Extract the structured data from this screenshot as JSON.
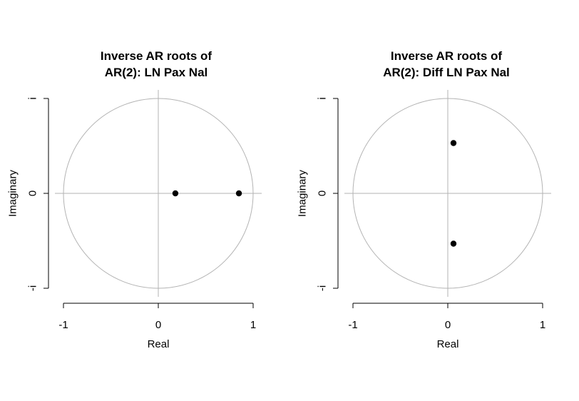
{
  "chart_data": [
    {
      "type": "scatter",
      "title_lines": [
        "Inverse AR roots of",
        "AR(2): LN Pax Nal"
      ],
      "xlabel": "Real",
      "ylabel": "Imaginary",
      "xlim": [
        -1,
        1
      ],
      "ylim": [
        -1,
        1
      ],
      "x_ticks": [
        -1,
        0,
        1
      ],
      "x_tick_labels": [
        "-1",
        "0",
        "1"
      ],
      "y_ticks": [
        1,
        0,
        -1
      ],
      "y_tick_labels": [
        "i",
        "0",
        "-i"
      ],
      "unit_circle": true,
      "circle_color": "#b3b3b3",
      "point_color": "#000000",
      "points": [
        {
          "x": 0.18,
          "y": 0.0
        },
        {
          "x": 0.85,
          "y": 0.0
        }
      ]
    },
    {
      "type": "scatter",
      "title_lines": [
        "Inverse AR roots of",
        "AR(2): Diff LN Pax Nal"
      ],
      "xlabel": "Real",
      "ylabel": "Imaginary",
      "xlim": [
        -1,
        1
      ],
      "ylim": [
        -1,
        1
      ],
      "x_ticks": [
        -1,
        0,
        1
      ],
      "x_tick_labels": [
        "-1",
        "0",
        "1"
      ],
      "y_ticks": [
        1,
        0,
        -1
      ],
      "y_tick_labels": [
        "i",
        "0",
        "-i"
      ],
      "unit_circle": true,
      "circle_color": "#b3b3b3",
      "point_color": "#000000",
      "points": [
        {
          "x": 0.06,
          "y": 0.53
        },
        {
          "x": 0.06,
          "y": -0.53
        }
      ]
    }
  ]
}
